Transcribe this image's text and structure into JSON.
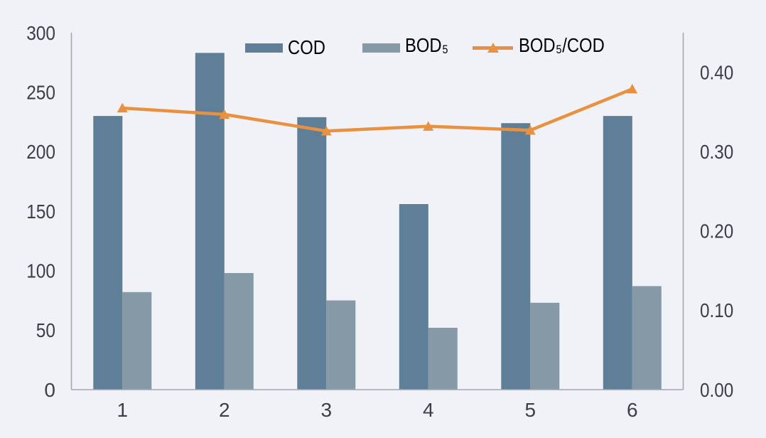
{
  "chart_data": {
    "type": "combo-bar-line",
    "categories": [
      "1",
      "2",
      "3",
      "4",
      "5",
      "6"
    ],
    "series": [
      {
        "name": "COD",
        "type": "bar",
        "axis": "left",
        "color": "#5e7f97",
        "values": [
          230,
          283,
          229,
          156,
          224,
          230
        ]
      },
      {
        "name": "BOD₅",
        "type": "bar",
        "axis": "left",
        "color": "#8699a7",
        "values": [
          82,
          98,
          75,
          52,
          73,
          87
        ]
      },
      {
        "name": "BOD₅/COD",
        "type": "line",
        "axis": "right",
        "color": "#e89140",
        "values": [
          0.355,
          0.347,
          0.326,
          0.332,
          0.327,
          0.379
        ]
      }
    ],
    "left_axis": {
      "min": 0,
      "max": 300,
      "ticks": [
        0,
        50,
        100,
        150,
        200,
        250,
        300
      ],
      "tick_labels": [
        "0",
        "50",
        "100",
        "150",
        "200",
        "250",
        "300"
      ]
    },
    "right_axis": {
      "min": 0,
      "max": 0.45,
      "ticks": [
        0,
        0.1,
        0.2,
        0.3,
        0.4
      ],
      "tick_labels": [
        "0.00",
        "0.10",
        "0.20",
        "0.30",
        "0.40"
      ]
    },
    "legend_position": "top-center",
    "grid": "off",
    "title": "",
    "xlabel": "",
    "ylabel_left": "",
    "ylabel_right": ""
  },
  "colors": {
    "background": "#f0f2f7",
    "axis_line": "#a3a7ae",
    "text": "#3c3f45"
  },
  "legend": {
    "items": [
      {
        "label": "COD"
      },
      {
        "label": "BOD₅"
      },
      {
        "label": "BOD₅/COD"
      }
    ]
  }
}
